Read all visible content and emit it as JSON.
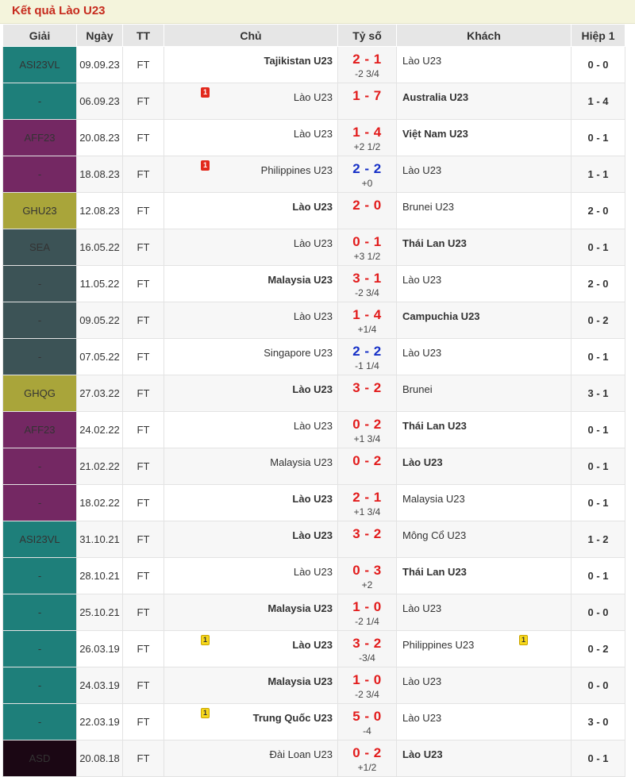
{
  "page": {
    "title": "Kết quả Lào U23"
  },
  "colors": {
    "title_text": "#c62a1d",
    "score_win_loss": "#e21b1b",
    "score_draw": "#1630c7",
    "league": {
      "ASI23VL": "#1e7f7a",
      "AFF23": "#742863",
      "GHU23": "#a9a53a",
      "SEA": "#3c5356",
      "GHQG": "#a9a53a",
      "ASD": "#1b0714"
    }
  },
  "table": {
    "headers": {
      "league": "Giải",
      "date": "Ngày",
      "status": "TT",
      "home": "Chủ",
      "score": "Tỷ số",
      "away": "Khách",
      "halftime": "Hiệp 1"
    },
    "rows": [
      {
        "league": "ASI23VL",
        "league_color": "#1e7f7a",
        "date": "09.09.23",
        "status": "FT",
        "home": "Tajikistan U23",
        "home_bold": true,
        "home_card": "",
        "score": "2 - 1",
        "draw": false,
        "handicap": "-2 3/4",
        "away": "Lào U23",
        "away_bold": false,
        "away_card": "",
        "ht": "0 - 0"
      },
      {
        "league": "-",
        "league_color": "#1e7f7a",
        "date": "06.09.23",
        "status": "FT",
        "home": "Lào U23",
        "home_bold": false,
        "home_card": "red",
        "home_card_count": "1",
        "score": "1 - 7",
        "draw": false,
        "handicap": "",
        "away": "Australia U23",
        "away_bold": true,
        "away_card": "",
        "ht": "1 - 4"
      },
      {
        "league": "AFF23",
        "league_color": "#742863",
        "date": "20.08.23",
        "status": "FT",
        "home": "Lào U23",
        "home_bold": false,
        "home_card": "",
        "score": "1 - 4",
        "draw": false,
        "handicap": "+2 1/2",
        "away": "Việt Nam U23",
        "away_bold": true,
        "away_card": "",
        "ht": "0 - 1"
      },
      {
        "league": "-",
        "league_color": "#742863",
        "date": "18.08.23",
        "status": "FT",
        "home": "Philippines U23",
        "home_bold": false,
        "home_card": "red",
        "home_card_count": "1",
        "score": "2 - 2",
        "draw": true,
        "handicap": "+0",
        "away": "Lào U23",
        "away_bold": false,
        "away_card": "",
        "ht": "1 - 1"
      },
      {
        "league": "GHU23",
        "league_color": "#a9a53a",
        "date": "12.08.23",
        "status": "FT",
        "home": "Lào U23",
        "home_bold": true,
        "home_card": "",
        "score": "2 - 0",
        "draw": false,
        "handicap": "",
        "away": "Brunei U23",
        "away_bold": false,
        "away_card": "",
        "ht": "2 - 0"
      },
      {
        "league": "SEA",
        "league_color": "#3c5356",
        "date": "16.05.22",
        "status": "FT",
        "home": "Lào U23",
        "home_bold": false,
        "home_card": "",
        "score": "0 - 1",
        "draw": false,
        "handicap": "+3 1/2",
        "away": "Thái Lan U23",
        "away_bold": true,
        "away_card": "",
        "ht": "0 - 1"
      },
      {
        "league": "-",
        "league_color": "#3c5356",
        "date": "11.05.22",
        "status": "FT",
        "home": "Malaysia U23",
        "home_bold": true,
        "home_card": "",
        "score": "3 - 1",
        "draw": false,
        "handicap": "-2 3/4",
        "away": "Lào U23",
        "away_bold": false,
        "away_card": "",
        "ht": "2 - 0"
      },
      {
        "league": "-",
        "league_color": "#3c5356",
        "date": "09.05.22",
        "status": "FT",
        "home": "Lào U23",
        "home_bold": false,
        "home_card": "",
        "score": "1 - 4",
        "draw": false,
        "handicap": "+1/4",
        "away": "Campuchia U23",
        "away_bold": true,
        "away_card": "",
        "ht": "0 - 2"
      },
      {
        "league": "-",
        "league_color": "#3c5356",
        "date": "07.05.22",
        "status": "FT",
        "home": "Singapore U23",
        "home_bold": false,
        "home_card": "",
        "score": "2 - 2",
        "draw": true,
        "handicap": "-1 1/4",
        "away": "Lào U23",
        "away_bold": false,
        "away_card": "",
        "ht": "0 - 1"
      },
      {
        "league": "GHQG",
        "league_color": "#a9a53a",
        "date": "27.03.22",
        "status": "FT",
        "home": "Lào U23",
        "home_bold": true,
        "home_card": "",
        "score": "3 - 2",
        "draw": false,
        "handicap": "",
        "away": "Brunei",
        "away_bold": false,
        "away_card": "",
        "ht": "3 - 1"
      },
      {
        "league": "AFF23",
        "league_color": "#742863",
        "date": "24.02.22",
        "status": "FT",
        "home": "Lào U23",
        "home_bold": false,
        "home_card": "",
        "score": "0 - 2",
        "draw": false,
        "handicap": "+1 3/4",
        "away": "Thái Lan U23",
        "away_bold": true,
        "away_card": "",
        "ht": "0 - 1"
      },
      {
        "league": "-",
        "league_color": "#742863",
        "date": "21.02.22",
        "status": "FT",
        "home": "Malaysia U23",
        "home_bold": false,
        "home_card": "",
        "score": "0 - 2",
        "draw": false,
        "handicap": "",
        "away": "Lào U23",
        "away_bold": true,
        "away_card": "",
        "ht": "0 - 1"
      },
      {
        "league": "-",
        "league_color": "#742863",
        "date": "18.02.22",
        "status": "FT",
        "home": "Lào U23",
        "home_bold": true,
        "home_card": "",
        "score": "2 - 1",
        "draw": false,
        "handicap": "+1 3/4",
        "away": "Malaysia U23",
        "away_bold": false,
        "away_card": "",
        "ht": "0 - 1"
      },
      {
        "league": "ASI23VL",
        "league_color": "#1e7f7a",
        "date": "31.10.21",
        "status": "FT",
        "home": "Lào U23",
        "home_bold": true,
        "home_card": "",
        "score": "3 - 2",
        "draw": false,
        "handicap": "",
        "away": "Mông Cổ U23",
        "away_bold": false,
        "away_card": "",
        "ht": "1 - 2"
      },
      {
        "league": "-",
        "league_color": "#1e7f7a",
        "date": "28.10.21",
        "status": "FT",
        "home": "Lào U23",
        "home_bold": false,
        "home_card": "",
        "score": "0 - 3",
        "draw": false,
        "handicap": "+2",
        "away": "Thái Lan U23",
        "away_bold": true,
        "away_card": "",
        "ht": "0 - 1"
      },
      {
        "league": "-",
        "league_color": "#1e7f7a",
        "date": "25.10.21",
        "status": "FT",
        "home": "Malaysia U23",
        "home_bold": true,
        "home_card": "",
        "score": "1 - 0",
        "draw": false,
        "handicap": "-2 1/4",
        "away": "Lào U23",
        "away_bold": false,
        "away_card": "",
        "ht": "0 - 0"
      },
      {
        "league": "-",
        "league_color": "#1e7f7a",
        "date": "26.03.19",
        "status": "FT",
        "home": "Lào U23",
        "home_bold": true,
        "home_card": "yellow",
        "home_card_count": "1",
        "score": "3 - 2",
        "draw": false,
        "handicap": "-3/4",
        "away": "Philippines U23",
        "away_bold": false,
        "away_card": "yellow",
        "away_card_count": "1",
        "ht": "0 - 2"
      },
      {
        "league": "-",
        "league_color": "#1e7f7a",
        "date": "24.03.19",
        "status": "FT",
        "home": "Malaysia U23",
        "home_bold": true,
        "home_card": "",
        "score": "1 - 0",
        "draw": false,
        "handicap": "-2 3/4",
        "away": "Lào U23",
        "away_bold": false,
        "away_card": "",
        "ht": "0 - 0"
      },
      {
        "league": "-",
        "league_color": "#1e7f7a",
        "date": "22.03.19",
        "status": "FT",
        "home": "Trung Quốc U23",
        "home_bold": true,
        "home_card": "yellow",
        "home_card_count": "1",
        "score": "5 - 0",
        "draw": false,
        "handicap": "-4",
        "away": "Lào U23",
        "away_bold": false,
        "away_card": "",
        "ht": "3 - 0"
      },
      {
        "league": "ASD",
        "league_color": "#1b0714",
        "date": "20.08.18",
        "status": "FT",
        "home": "Đài Loan U23",
        "home_bold": false,
        "home_card": "",
        "score": "0 - 2",
        "draw": false,
        "handicap": "+1/2",
        "away": "Lào U23",
        "away_bold": true,
        "away_card": "",
        "ht": "0 - 1"
      }
    ]
  }
}
